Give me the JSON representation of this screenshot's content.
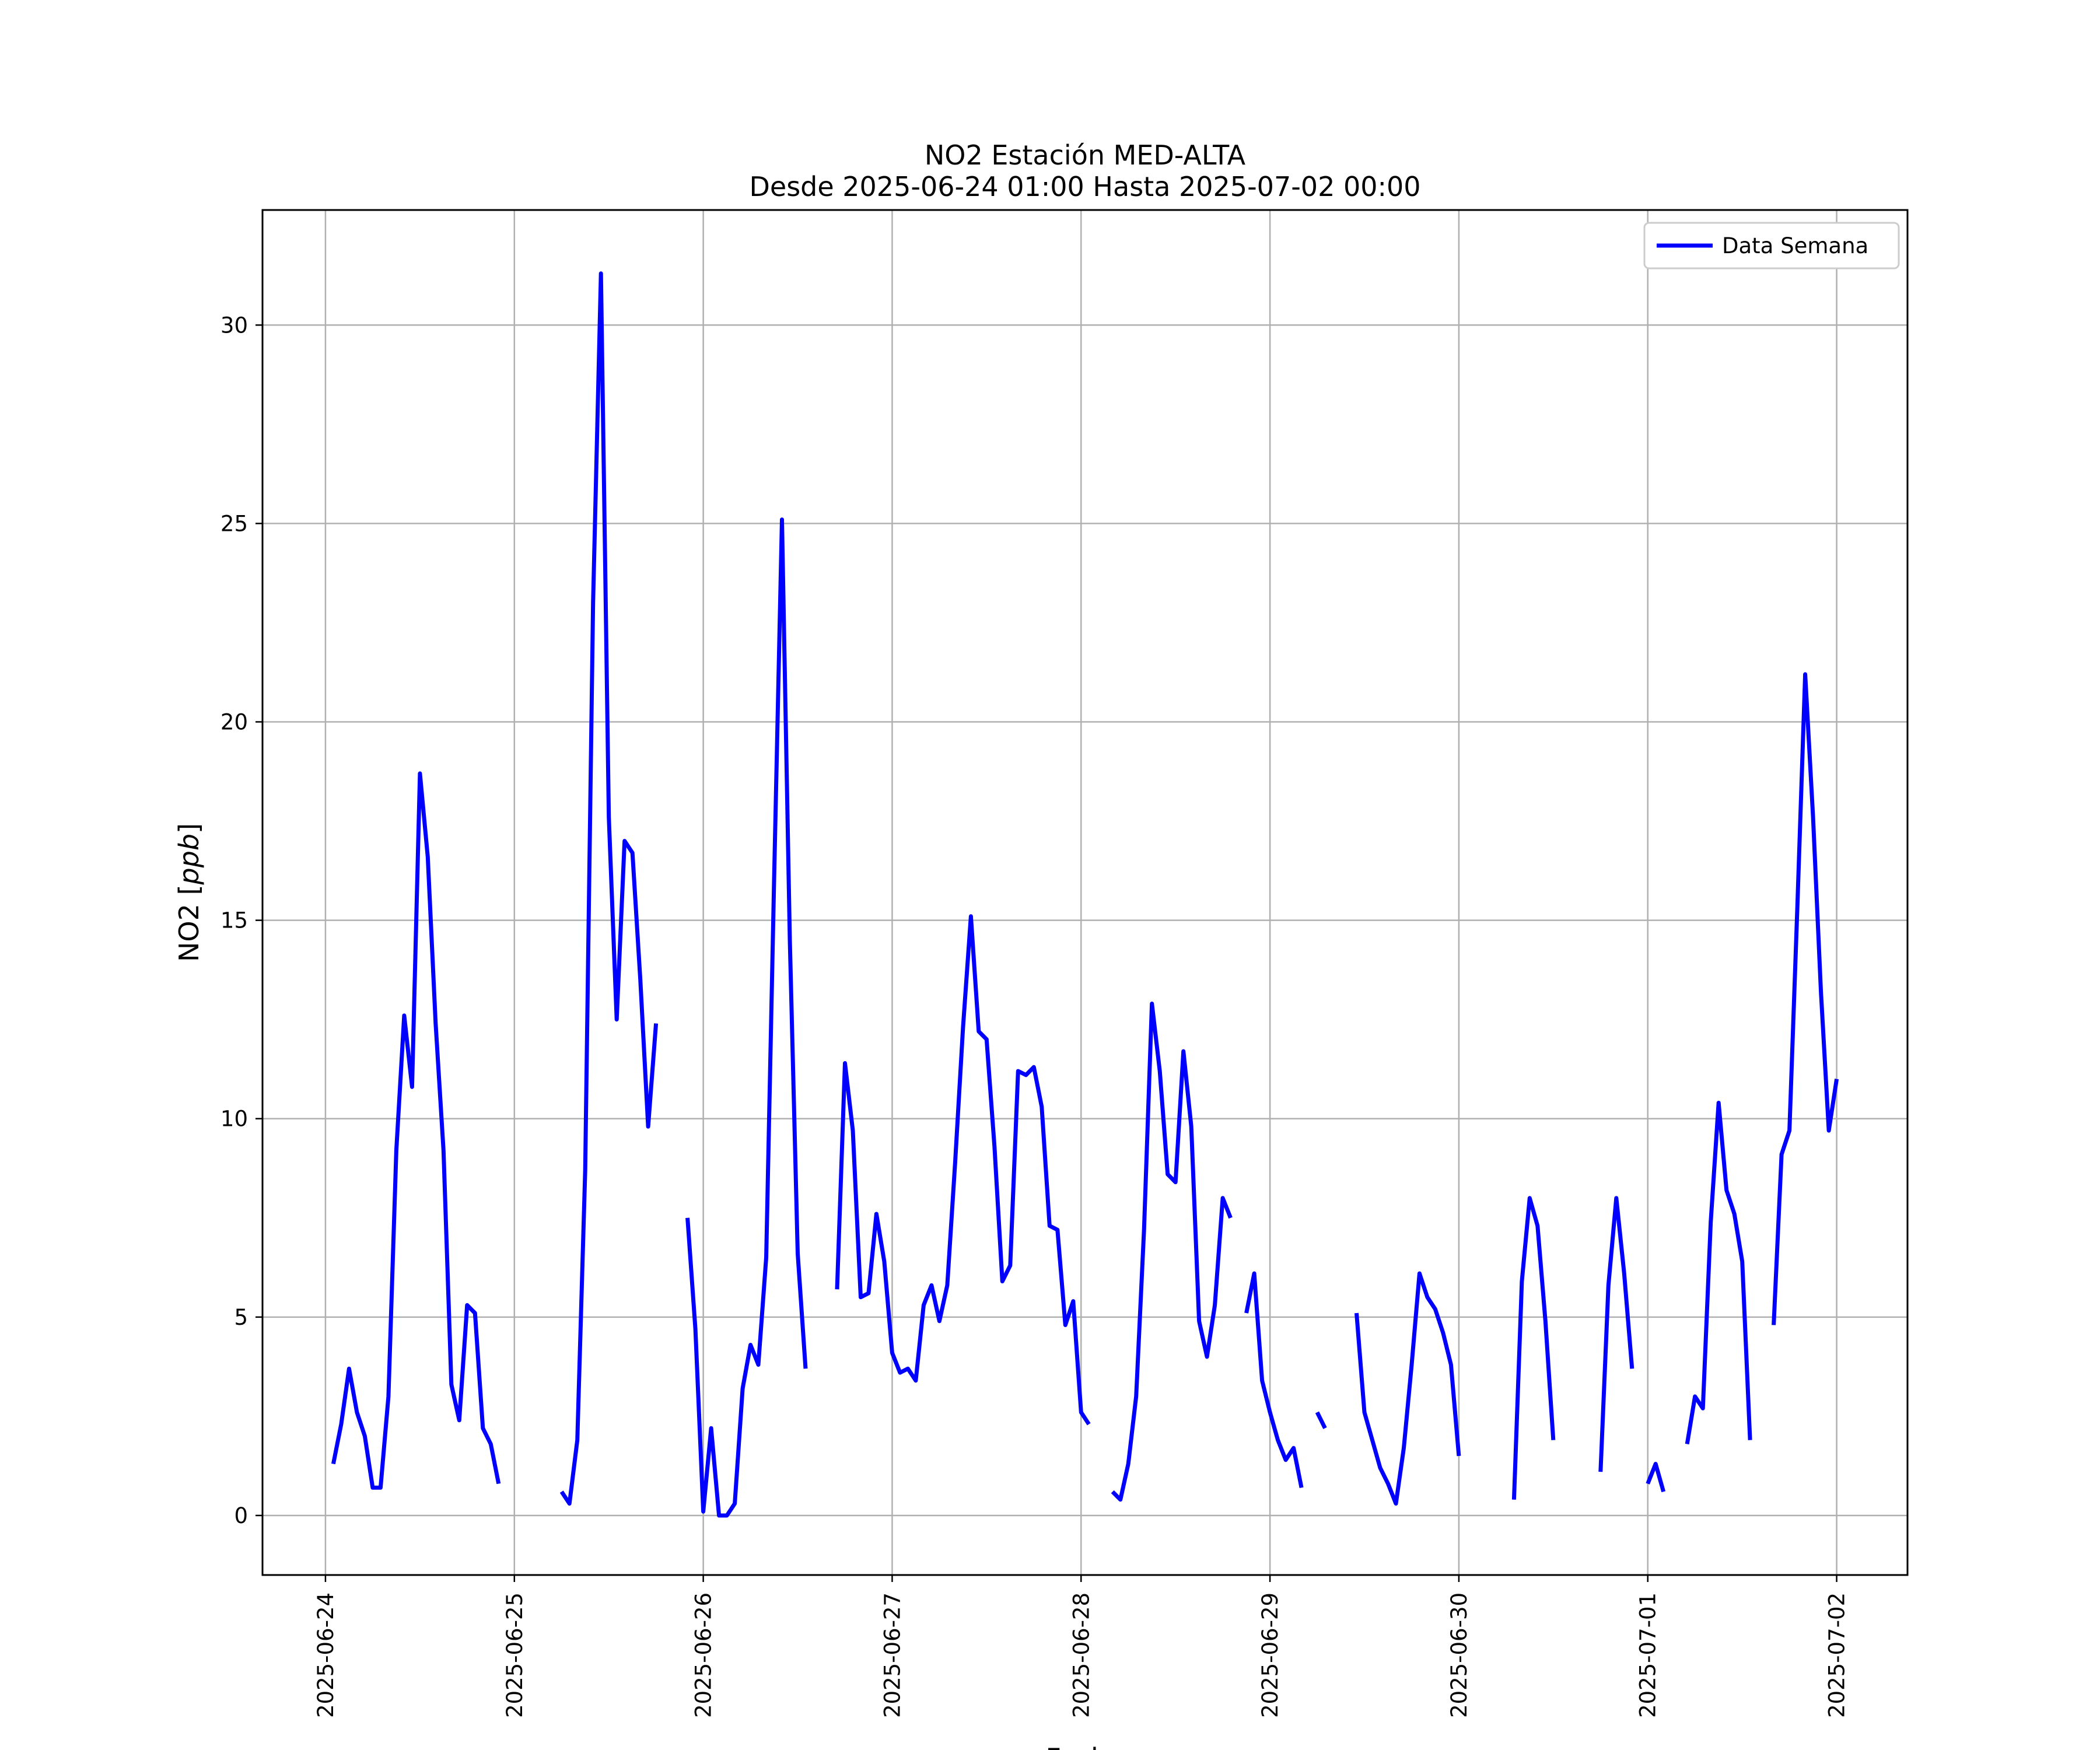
{
  "chart_data": {
    "type": "line",
    "title": "NO2 Estación MED-ALTA",
    "subtitle": "Desde 2025-06-24 01:00 Hasta 2025-07-02 00:00",
    "xlabel": "Fecha",
    "ylabel": "NO2 [ppb]",
    "xlim": [
      "2025-06-23 16:00",
      "2025-07-02 09:00"
    ],
    "ylim": [
      -1.5,
      32.9
    ],
    "grid": true,
    "legend_position": "top-right",
    "x_ticks": [
      "2025-06-24",
      "2025-06-25",
      "2025-06-26",
      "2025-06-27",
      "2025-06-28",
      "2025-06-29",
      "2025-06-30",
      "2025-07-01",
      "2025-07-02"
    ],
    "y_ticks": [
      0,
      5,
      10,
      15,
      20,
      25,
      30
    ],
    "colors": {
      "series": "#0000ff"
    },
    "series": [
      {
        "name": "Data Semana",
        "segments": [
          [
            [
              "2025-06-24 01:00",
              1.3
            ],
            [
              "2025-06-24 02:00",
              2.3
            ],
            [
              "2025-06-24 03:00",
              3.7
            ],
            [
              "2025-06-24 04:00",
              2.6
            ],
            [
              "2025-06-24 05:00",
              2.0
            ],
            [
              "2025-06-24 06:00",
              0.7
            ],
            [
              "2025-06-24 07:00",
              0.7
            ],
            [
              "2025-06-24 08:00",
              3.0
            ],
            [
              "2025-06-24 09:00",
              9.2
            ],
            [
              "2025-06-24 10:00",
              12.6
            ],
            [
              "2025-06-24 11:00",
              10.8
            ],
            [
              "2025-06-24 12:00",
              18.7
            ],
            [
              "2025-06-24 13:00",
              16.6
            ],
            [
              "2025-06-24 14:00",
              12.4
            ],
            [
              "2025-06-24 15:00",
              9.2
            ],
            [
              "2025-06-24 16:00",
              3.3
            ],
            [
              "2025-06-24 17:00",
              2.4
            ],
            [
              "2025-06-24 18:00",
              5.3
            ],
            [
              "2025-06-24 19:00",
              5.1
            ],
            [
              "2025-06-24 20:00",
              2.2
            ],
            [
              "2025-06-24 21:00",
              1.8
            ],
            [
              "2025-06-24 22:00",
              0.8
            ]
          ],
          [
            [
              "2025-06-25 06:00",
              0.6
            ],
            [
              "2025-06-25 07:00",
              0.3
            ],
            [
              "2025-06-25 08:00",
              1.9
            ],
            [
              "2025-06-25 09:00",
              8.7
            ],
            [
              "2025-06-25 10:00",
              23.0
            ],
            [
              "2025-06-25 11:00",
              31.3
            ],
            [
              "2025-06-25 12:00",
              17.6
            ],
            [
              "2025-06-25 13:00",
              12.5
            ],
            [
              "2025-06-25 14:00",
              17.0
            ],
            [
              "2025-06-25 15:00",
              16.7
            ],
            [
              "2025-06-25 16:00",
              13.5
            ],
            [
              "2025-06-25 17:00",
              9.8
            ],
            [
              "2025-06-25 18:00",
              12.4
            ]
          ],
          [
            [
              "2025-06-25 22:00",
              7.5
            ],
            [
              "2025-06-25 23:00",
              4.7
            ],
            [
              "2025-06-26 00:00",
              0.1
            ],
            [
              "2025-06-26 01:00",
              2.2
            ],
            [
              "2025-06-26 02:00",
              0.0
            ],
            [
              "2025-06-26 03:00",
              0.0
            ],
            [
              "2025-06-26 04:00",
              0.3
            ],
            [
              "2025-06-26 05:00",
              3.2
            ],
            [
              "2025-06-26 06:00",
              4.3
            ],
            [
              "2025-06-26 07:00",
              3.8
            ],
            [
              "2025-06-26 08:00",
              6.5
            ],
            [
              "2025-06-26 09:00",
              16.0
            ],
            [
              "2025-06-26 10:00",
              25.1
            ],
            [
              "2025-06-26 11:00",
              14.5
            ],
            [
              "2025-06-26 12:00",
              6.6
            ],
            [
              "2025-06-26 13:00",
              3.7
            ]
          ],
          [
            [
              "2025-06-26 17:00",
              5.7
            ],
            [
              "2025-06-26 18:00",
              11.4
            ],
            [
              "2025-06-26 19:00",
              9.7
            ],
            [
              "2025-06-26 20:00",
              5.5
            ],
            [
              "2025-06-26 21:00",
              5.6
            ],
            [
              "2025-06-26 22:00",
              7.6
            ],
            [
              "2025-06-26 23:00",
              6.4
            ],
            [
              "2025-06-27 00:00",
              4.1
            ],
            [
              "2025-06-27 01:00",
              3.6
            ],
            [
              "2025-06-27 02:00",
              3.7
            ],
            [
              "2025-06-27 03:00",
              3.4
            ],
            [
              "2025-06-27 04:00",
              5.3
            ],
            [
              "2025-06-27 05:00",
              5.8
            ],
            [
              "2025-06-27 06:00",
              4.9
            ],
            [
              "2025-06-27 07:00",
              5.8
            ],
            [
              "2025-06-27 08:00",
              8.9
            ],
            [
              "2025-06-27 09:00",
              12.3
            ],
            [
              "2025-06-27 10:00",
              15.1
            ],
            [
              "2025-06-27 11:00",
              12.2
            ],
            [
              "2025-06-27 12:00",
              12.0
            ],
            [
              "2025-06-27 13:00",
              9.3
            ],
            [
              "2025-06-27 14:00",
              5.9
            ],
            [
              "2025-06-27 15:00",
              6.3
            ],
            [
              "2025-06-27 16:00",
              11.2
            ],
            [
              "2025-06-27 17:00",
              11.1
            ],
            [
              "2025-06-27 18:00",
              11.3
            ],
            [
              "2025-06-27 19:00",
              10.3
            ],
            [
              "2025-06-27 20:00",
              7.3
            ],
            [
              "2025-06-27 21:00",
              7.2
            ],
            [
              "2025-06-27 22:00",
              4.8
            ],
            [
              "2025-06-27 23:00",
              5.4
            ],
            [
              "2025-06-28 00:00",
              2.6
            ],
            [
              "2025-06-28 01:00",
              2.3
            ]
          ],
          [
            [
              "2025-06-28 04:00",
              0.6
            ],
            [
              "2025-06-28 05:00",
              0.4
            ],
            [
              "2025-06-28 06:00",
              1.3
            ],
            [
              "2025-06-28 07:00",
              3.0
            ],
            [
              "2025-06-28 08:00",
              7.2
            ],
            [
              "2025-06-28 09:00",
              12.9
            ],
            [
              "2025-06-28 10:00",
              11.2
            ],
            [
              "2025-06-28 11:00",
              8.6
            ],
            [
              "2025-06-28 12:00",
              8.4
            ],
            [
              "2025-06-28 13:00",
              11.7
            ],
            [
              "2025-06-28 14:00",
              9.8
            ],
            [
              "2025-06-28 15:00",
              4.9
            ],
            [
              "2025-06-28 16:00",
              4.0
            ],
            [
              "2025-06-28 17:00",
              5.3
            ],
            [
              "2025-06-28 18:00",
              8.0
            ],
            [
              "2025-06-28 19:00",
              7.5
            ]
          ],
          [
            [
              "2025-06-28 21:00",
              5.1
            ],
            [
              "2025-06-28 22:00",
              6.1
            ],
            [
              "2025-06-28 23:00",
              3.4
            ],
            [
              "2025-06-29 00:00",
              2.6
            ],
            [
              "2025-06-29 01:00",
              1.9
            ],
            [
              "2025-06-29 02:00",
              1.4
            ],
            [
              "2025-06-29 03:00",
              1.7
            ],
            [
              "2025-06-29 04:00",
              0.7
            ]
          ],
          [
            [
              "2025-06-29 06:00",
              2.6
            ],
            [
              "2025-06-29 07:00",
              2.2
            ]
          ],
          [
            [
              "2025-06-29 11:00",
              5.1
            ],
            [
              "2025-06-29 12:00",
              2.6
            ],
            [
              "2025-06-29 13:00",
              1.9
            ],
            [
              "2025-06-29 14:00",
              1.2
            ],
            [
              "2025-06-29 15:00",
              0.8
            ],
            [
              "2025-06-29 16:00",
              0.3
            ],
            [
              "2025-06-29 17:00",
              1.7
            ],
            [
              "2025-06-29 18:00",
              3.8
            ],
            [
              "2025-06-29 19:00",
              6.1
            ],
            [
              "2025-06-29 20:00",
              5.5
            ],
            [
              "2025-06-29 21:00",
              5.2
            ],
            [
              "2025-06-29 22:00",
              4.6
            ],
            [
              "2025-06-29 23:00",
              3.8
            ],
            [
              "2025-06-30 00:00",
              1.5
            ]
          ],
          [
            [
              "2025-06-30 07:00",
              0.4
            ],
            [
              "2025-06-30 08:00",
              5.9
            ],
            [
              "2025-06-30 09:00",
              8.0
            ],
            [
              "2025-06-30 10:00",
              7.3
            ],
            [
              "2025-06-30 11:00",
              4.9
            ],
            [
              "2025-06-30 12:00",
              1.9
            ]
          ],
          [
            [
              "2025-06-30 18:00",
              1.1
            ],
            [
              "2025-06-30 19:00",
              5.8
            ],
            [
              "2025-06-30 20:00",
              8.0
            ],
            [
              "2025-06-30 21:00",
              6.1
            ],
            [
              "2025-06-30 22:00",
              3.7
            ]
          ],
          [
            [
              "2025-07-01 00:00",
              0.8
            ],
            [
              "2025-07-01 01:00",
              1.3
            ],
            [
              "2025-07-01 02:00",
              0.6
            ]
          ],
          [
            [
              "2025-07-01 05:00",
              1.8
            ],
            [
              "2025-07-01 06:00",
              3.0
            ],
            [
              "2025-07-01 07:00",
              2.7
            ],
            [
              "2025-07-01 08:00",
              7.4
            ],
            [
              "2025-07-01 09:00",
              10.4
            ],
            [
              "2025-07-01 10:00",
              8.2
            ],
            [
              "2025-07-01 11:00",
              7.6
            ],
            [
              "2025-07-01 12:00",
              6.4
            ],
            [
              "2025-07-01 13:00",
              1.9
            ]
          ],
          [
            [
              "2025-07-01 16:00",
              4.8
            ],
            [
              "2025-07-01 17:00",
              9.1
            ],
            [
              "2025-07-01 18:00",
              9.7
            ],
            [
              "2025-07-01 19:00",
              15.3
            ],
            [
              "2025-07-01 20:00",
              21.2
            ],
            [
              "2025-07-01 21:00",
              17.6
            ],
            [
              "2025-07-01 22:00",
              13.2
            ],
            [
              "2025-07-01 23:00",
              9.7
            ],
            [
              "2025-07-02 00:00",
              11.0
            ]
          ]
        ]
      }
    ]
  }
}
